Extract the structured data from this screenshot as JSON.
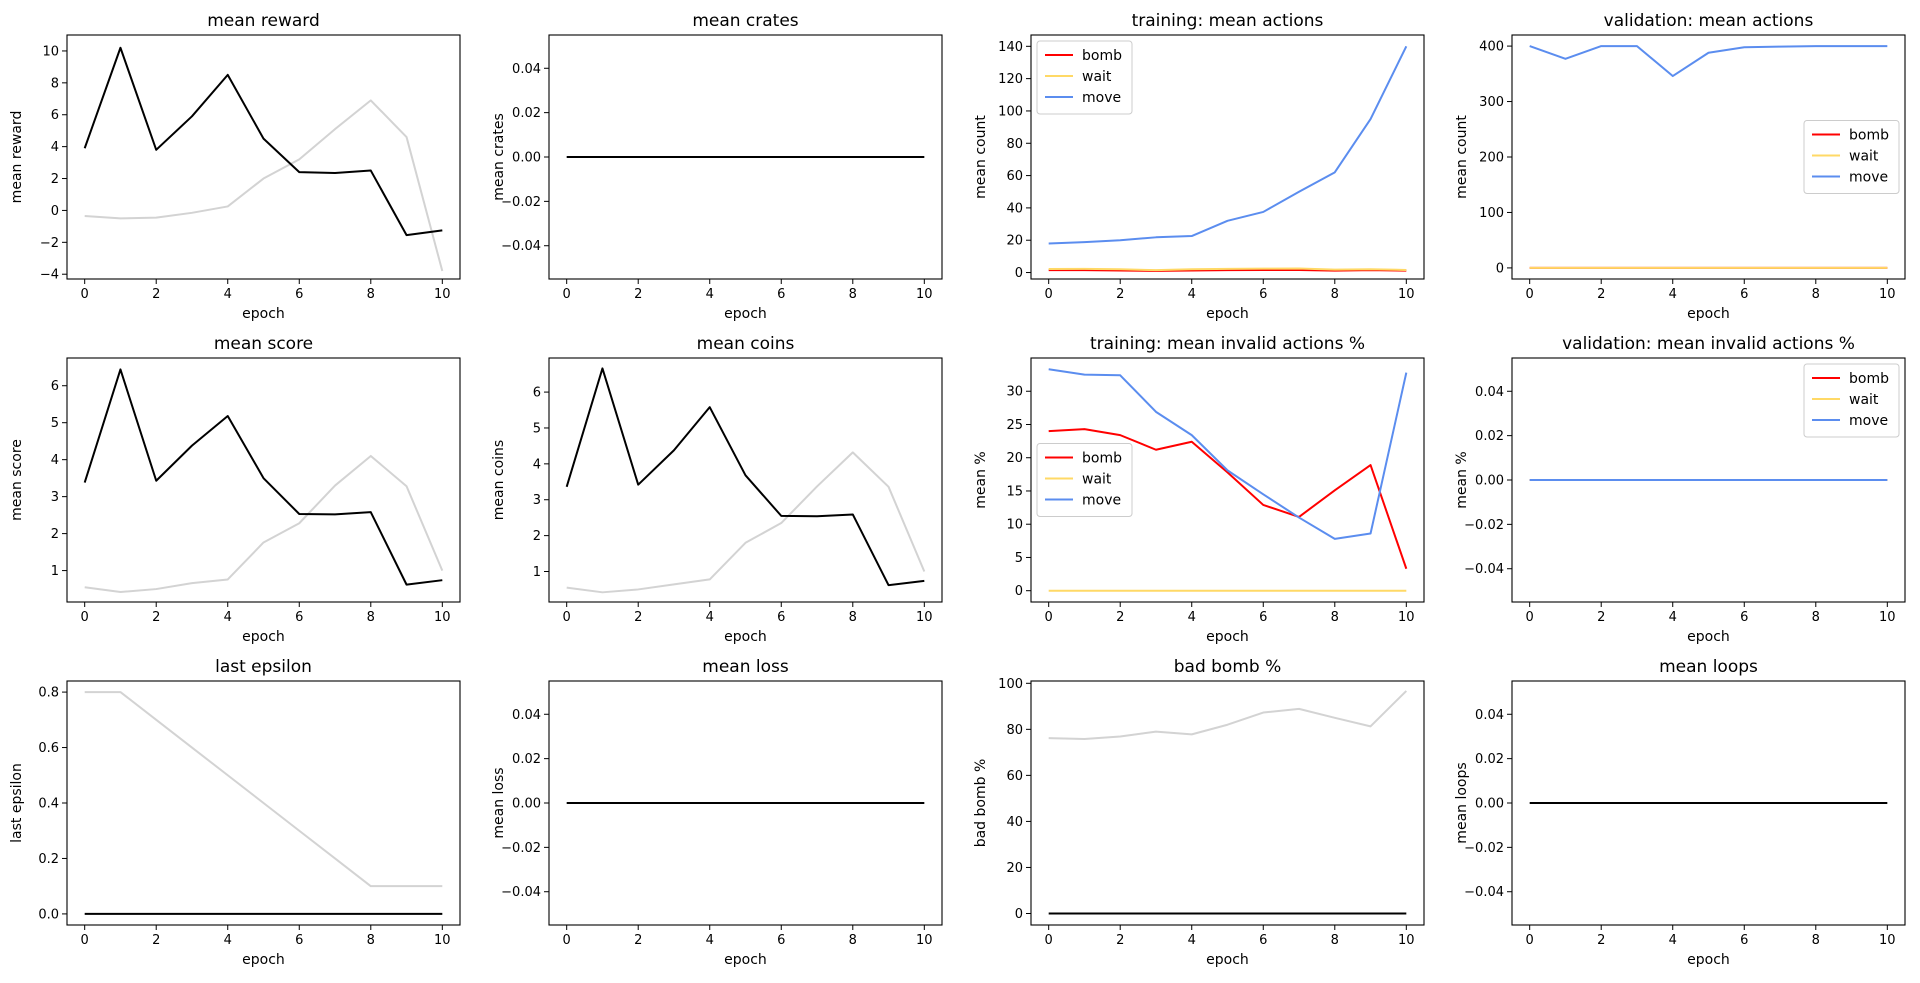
{
  "colors": {
    "training": "#000000",
    "validation": "#d3d3d3",
    "bomb": "#ff0000",
    "wait": "#ffd966",
    "move": "#5b8def"
  },
  "chart_data": [
    {
      "type": "line",
      "title": "mean reward",
      "xlabel": "epoch",
      "ylabel": "mean reward",
      "x": [
        0,
        1,
        2,
        3,
        4,
        5,
        6,
        7,
        8,
        9,
        10
      ],
      "xticks": [
        0,
        2,
        4,
        6,
        8,
        10
      ],
      "ylim": [
        -4.3,
        11.0
      ],
      "yticks": [
        -4,
        -2,
        0,
        2,
        4,
        6,
        8,
        10
      ],
      "series": [
        {
          "color": "#d3d3d3",
          "values": [
            -0.35,
            -0.5,
            -0.45,
            -0.15,
            0.25,
            2.0,
            3.2,
            5.1,
            6.9,
            4.6,
            -3.8
          ]
        },
        {
          "color": "#000000",
          "values": [
            3.9,
            10.2,
            3.8,
            5.9,
            8.5,
            4.5,
            2.4,
            2.35,
            2.5,
            -1.55,
            -1.25
          ]
        }
      ]
    },
    {
      "type": "line",
      "title": "mean crates",
      "xlabel": "epoch",
      "ylabel": "mean crates",
      "x": [
        0,
        1,
        2,
        3,
        4,
        5,
        6,
        7,
        8,
        9,
        10
      ],
      "xticks": [
        0,
        2,
        4,
        6,
        8,
        10
      ],
      "ylim": [
        -0.055,
        0.055
      ],
      "yticks": [
        -0.04,
        -0.02,
        0.0,
        0.02,
        0.04
      ],
      "ydec": 2,
      "series": [
        {
          "color": "#000000",
          "values": [
            0,
            0,
            0,
            0,
            0,
            0,
            0,
            0,
            0,
            0,
            0
          ]
        }
      ]
    },
    {
      "type": "line",
      "title": "training: mean actions",
      "xlabel": "epoch",
      "ylabel": "mean count",
      "x": [
        0,
        1,
        2,
        3,
        4,
        5,
        6,
        7,
        8,
        9,
        10
      ],
      "xticks": [
        0,
        2,
        4,
        6,
        8,
        10
      ],
      "ylim": [
        -4,
        147
      ],
      "yticks": [
        0,
        20,
        40,
        60,
        80,
        100,
        120,
        140
      ],
      "legend": {
        "position": "top-left"
      },
      "series": [
        {
          "name": "bomb",
          "color": "#ff0000",
          "values": [
            1.5,
            1.5,
            1.3,
            1.0,
            1.3,
            1.5,
            1.6,
            1.6,
            1.2,
            1.5,
            1.2
          ]
        },
        {
          "name": "wait",
          "color": "#ffd966",
          "values": [
            2.2,
            2.3,
            2.0,
            1.5,
            2.0,
            2.3,
            2.4,
            2.5,
            1.8,
            2.0,
            1.6
          ]
        },
        {
          "name": "move",
          "color": "#5b8def",
          "values": [
            18,
            18.8,
            20,
            21.8,
            22.6,
            32,
            37.5,
            50,
            62,
            95,
            140
          ]
        }
      ]
    },
    {
      "type": "line",
      "title": "validation: mean actions",
      "xlabel": "epoch",
      "ylabel": "mean count",
      "x": [
        0,
        1,
        2,
        3,
        4,
        5,
        6,
        7,
        8,
        9,
        10
      ],
      "xticks": [
        0,
        2,
        4,
        6,
        8,
        10
      ],
      "ylim": [
        -20,
        420
      ],
      "yticks": [
        0,
        100,
        200,
        300,
        400
      ],
      "legend": {
        "position": "center-right"
      },
      "series": [
        {
          "name": "bomb",
          "color": "#ff0000",
          "values": [
            0,
            0,
            0,
            0,
            0,
            0,
            0,
            0,
            0,
            0,
            0
          ]
        },
        {
          "name": "wait",
          "color": "#ffd966",
          "values": [
            0,
            0,
            0,
            0,
            0,
            0,
            0,
            0,
            0,
            0,
            0
          ]
        },
        {
          "name": "move",
          "color": "#5b8def",
          "values": [
            400,
            377,
            400,
            400,
            346,
            388,
            398,
            399,
            400,
            400,
            400
          ]
        }
      ]
    },
    {
      "type": "line",
      "title": "mean score",
      "xlabel": "epoch",
      "ylabel": "mean score",
      "x": [
        0,
        1,
        2,
        3,
        4,
        5,
        6,
        7,
        8,
        9,
        10
      ],
      "xticks": [
        0,
        2,
        4,
        6,
        8,
        10
      ],
      "ylim": [
        0.15,
        6.75
      ],
      "yticks": [
        1,
        2,
        3,
        4,
        5,
        6
      ],
      "series": [
        {
          "color": "#d3d3d3",
          "values": [
            0.55,
            0.42,
            0.5,
            0.66,
            0.76,
            1.76,
            2.28,
            3.3,
            4.1,
            3.28,
            1.0
          ]
        },
        {
          "color": "#000000",
          "values": [
            3.38,
            6.44,
            3.43,
            4.38,
            5.18,
            3.5,
            2.53,
            2.52,
            2.58,
            0.62,
            0.74
          ]
        }
      ]
    },
    {
      "type": "line",
      "title": "mean coins",
      "xlabel": "epoch",
      "ylabel": "mean coins",
      "x": [
        0,
        1,
        2,
        3,
        4,
        5,
        6,
        7,
        8,
        9,
        10
      ],
      "xticks": [
        0,
        2,
        4,
        6,
        8,
        10
      ],
      "ylim": [
        0.15,
        6.95
      ],
      "yticks": [
        1,
        2,
        3,
        4,
        5,
        6
      ],
      "series": [
        {
          "color": "#d3d3d3",
          "values": [
            0.55,
            0.42,
            0.5,
            0.64,
            0.78,
            1.8,
            2.35,
            3.37,
            4.32,
            3.36,
            1.0
          ]
        },
        {
          "color": "#000000",
          "values": [
            3.36,
            6.66,
            3.42,
            4.38,
            5.58,
            3.68,
            2.55,
            2.54,
            2.59,
            0.62,
            0.74
          ]
        }
      ]
    },
    {
      "type": "line",
      "title": "training: mean invalid actions %",
      "xlabel": "epoch",
      "ylabel": "mean %",
      "x": [
        0,
        1,
        2,
        3,
        4,
        5,
        6,
        7,
        8,
        9,
        10
      ],
      "xticks": [
        0,
        2,
        4,
        6,
        8,
        10
      ],
      "ylim": [
        -1.7,
        35.0
      ],
      "yticks": [
        0,
        5,
        10,
        15,
        20,
        25,
        30
      ],
      "legend": {
        "position": "center-left"
      },
      "series": [
        {
          "name": "bomb",
          "color": "#ff0000",
          "values": [
            24,
            24.3,
            23.4,
            21.2,
            22.4,
            17.8,
            12.9,
            11.1,
            15.1,
            18.9,
            3.3
          ]
        },
        {
          "name": "wait",
          "color": "#ffd966",
          "values": [
            0,
            0,
            0,
            0,
            0,
            0,
            0,
            0,
            0,
            0,
            0
          ]
        },
        {
          "name": "move",
          "color": "#5b8def",
          "values": [
            33.3,
            32.5,
            32.4,
            26.9,
            23.4,
            18.1,
            14.5,
            11.0,
            7.8,
            8.6,
            32.8
          ]
        }
      ]
    },
    {
      "type": "line",
      "title": "validation: mean invalid actions %",
      "xlabel": "epoch",
      "ylabel": "mean %",
      "x": [
        0,
        1,
        2,
        3,
        4,
        5,
        6,
        7,
        8,
        9,
        10
      ],
      "xticks": [
        0,
        2,
        4,
        6,
        8,
        10
      ],
      "ylim": [
        -0.055,
        0.055
      ],
      "yticks": [
        -0.04,
        -0.02,
        0.0,
        0.02,
        0.04
      ],
      "ydec": 2,
      "legend": {
        "position": "top-right"
      },
      "series": [
        {
          "name": "bomb",
          "color": "#ff0000",
          "values": [
            0,
            0,
            0,
            0,
            0,
            0,
            0,
            0,
            0,
            0,
            0
          ]
        },
        {
          "name": "wait",
          "color": "#ffd966",
          "values": [
            0,
            0,
            0,
            0,
            0,
            0,
            0,
            0,
            0,
            0,
            0
          ]
        },
        {
          "name": "move",
          "color": "#5b8def",
          "values": [
            0,
            0,
            0,
            0,
            0,
            0,
            0,
            0,
            0,
            0,
            0
          ]
        }
      ]
    },
    {
      "type": "line",
      "title": "last epsilon",
      "xlabel": "epoch",
      "ylabel": "last epsilon",
      "x": [
        0,
        1,
        2,
        3,
        4,
        5,
        6,
        7,
        8,
        9,
        10
      ],
      "xticks": [
        0,
        2,
        4,
        6,
        8,
        10
      ],
      "ylim": [
        -0.04,
        0.84
      ],
      "yticks": [
        0.0,
        0.2,
        0.4,
        0.6,
        0.8
      ],
      "ydec": 1,
      "series": [
        {
          "color": "#d3d3d3",
          "values": [
            0.8,
            0.8,
            0.7,
            0.6,
            0.5,
            0.4,
            0.3,
            0.2,
            0.1,
            0.1,
            0.1
          ]
        },
        {
          "color": "#000000",
          "values": [
            0,
            0,
            0,
            0,
            0,
            0,
            0,
            0,
            0,
            0,
            0
          ]
        }
      ]
    },
    {
      "type": "line",
      "title": "mean loss",
      "xlabel": "epoch",
      "ylabel": "mean loss",
      "x": [
        0,
        1,
        2,
        3,
        4,
        5,
        6,
        7,
        8,
        9,
        10
      ],
      "xticks": [
        0,
        2,
        4,
        6,
        8,
        10
      ],
      "ylim": [
        -0.055,
        0.055
      ],
      "yticks": [
        -0.04,
        -0.02,
        0.0,
        0.02,
        0.04
      ],
      "ydec": 2,
      "series": [
        {
          "color": "#000000",
          "values": [
            0,
            0,
            0,
            0,
            0,
            0,
            0,
            0,
            0,
            0,
            0
          ]
        }
      ]
    },
    {
      "type": "line",
      "title": "bad bomb %",
      "xlabel": "epoch",
      "ylabel": "bad bomb %",
      "x": [
        0,
        1,
        2,
        3,
        4,
        5,
        6,
        7,
        8,
        9,
        10
      ],
      "xticks": [
        0,
        2,
        4,
        6,
        8,
        10
      ],
      "ylim": [
        -5,
        101
      ],
      "yticks": [
        0,
        20,
        40,
        60,
        80,
        100
      ],
      "series": [
        {
          "color": "#d3d3d3",
          "values": [
            76.2,
            75.8,
            76.9,
            79.0,
            77.8,
            82.0,
            87.3,
            88.9,
            85.0,
            81.3,
            96.7
          ]
        },
        {
          "color": "#000000",
          "values": [
            0,
            0,
            0,
            0,
            0,
            0,
            0,
            0,
            0,
            0,
            0
          ]
        }
      ]
    },
    {
      "type": "line",
      "title": "mean loops",
      "xlabel": "epoch",
      "ylabel": "mean loops",
      "x": [
        0,
        1,
        2,
        3,
        4,
        5,
        6,
        7,
        8,
        9,
        10
      ],
      "xticks": [
        0,
        2,
        4,
        6,
        8,
        10
      ],
      "ylim": [
        -0.055,
        0.055
      ],
      "yticks": [
        -0.04,
        -0.02,
        0.0,
        0.02,
        0.04
      ],
      "ydec": 2,
      "series": [
        {
          "color": "#000000",
          "values": [
            0,
            0,
            0,
            0,
            0,
            0,
            0,
            0,
            0,
            0,
            0
          ]
        }
      ]
    }
  ]
}
